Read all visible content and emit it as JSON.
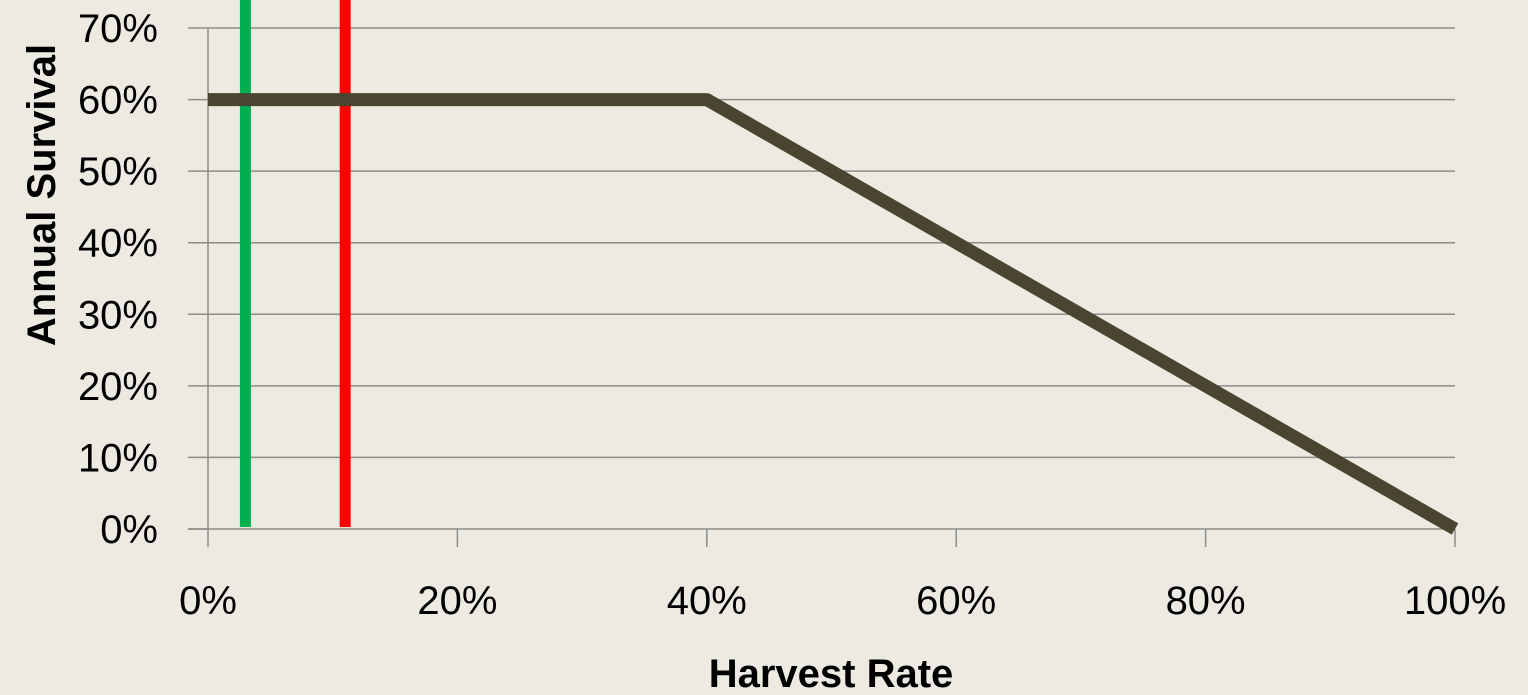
{
  "chart_data": {
    "type": "line",
    "xlabel": "Harvest Rate",
    "ylabel": "Annual Survival",
    "xlim": [
      0,
      100
    ],
    "ylim": [
      0,
      70
    ],
    "x_ticks": [
      "0%",
      "20%",
      "40%",
      "60%",
      "80%",
      "100%"
    ],
    "y_ticks": [
      "0%",
      "10%",
      "20%",
      "30%",
      "40%",
      "50%",
      "60%",
      "70%"
    ],
    "grid": "horizontal",
    "series": [
      {
        "x": [
          0,
          40,
          100
        ],
        "y": [
          60,
          60,
          0
        ],
        "color": "#4A4530"
      }
    ],
    "reference_lines": [
      {
        "x": 3,
        "color": "#00B050"
      },
      {
        "x": 11,
        "color": "#FF0000"
      }
    ]
  },
  "colors": {
    "background": "#EDEBE1",
    "grid": "#8C8C8C",
    "axis": "#8C8C8C"
  }
}
